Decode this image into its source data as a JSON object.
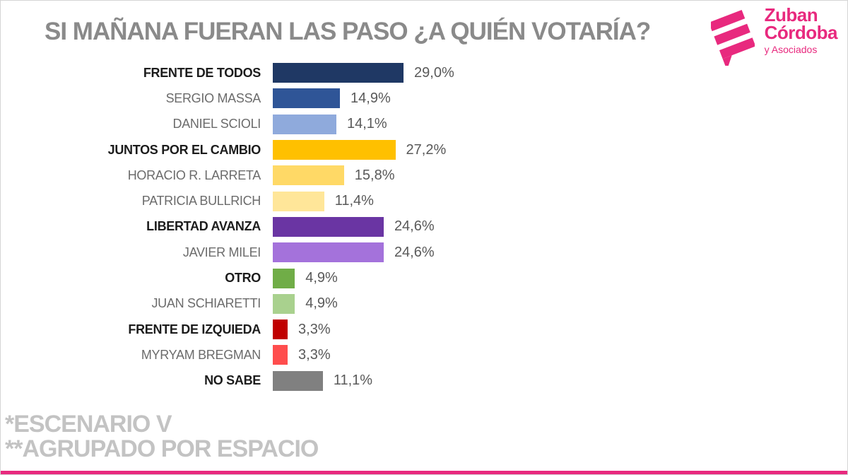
{
  "title": "SI MAÑANA FUERAN LAS PASO ¿A QUIÉN VOTARÍA?",
  "logo": {
    "name_line1": "Zuban",
    "name_line2": "Córdoba",
    "tagline": "y Asociados",
    "brand_color": "#E8297E"
  },
  "footnotes": {
    "line1": "*ESCENARIO V",
    "line2": "**AGRUPADO POR ESPACIO"
  },
  "chart_data": {
    "type": "bar",
    "orientation": "horizontal",
    "title": "SI MAÑANA FUERAN LAS PASO ¿A QUIÉN VOTARÍA?",
    "xlim": [
      0,
      31
    ],
    "grid": false,
    "value_suffix": "%",
    "decimal_separator": ",",
    "value_label_position": "right-of-bar",
    "categories": [
      "FRENTE DE TODOS",
      "SERGIO MASSA",
      "DANIEL SCIOLI",
      "JUNTOS POR EL CAMBIO",
      "HORACIO R. LARRETA",
      "PATRICIA BULLRICH",
      "LIBERTAD AVANZA",
      "JAVIER MILEI",
      "OTRO",
      "JUAN SCHIARETTI",
      "FRENTE DE IZQUIEDA",
      "MYRYAM BREGMAN",
      "NO SABE"
    ],
    "values": [
      29.0,
      14.9,
      14.1,
      27.2,
      15.8,
      11.4,
      24.6,
      24.6,
      4.9,
      4.9,
      3.3,
      3.3,
      11.1
    ],
    "value_labels": [
      "29,0%",
      "14,9%",
      "14,1%",
      "27,2%",
      "15,8%",
      "11,4%",
      "24,6%",
      "24,6%",
      "4,9%",
      "4,9%",
      "3,3%",
      "3,3%",
      "11,1%"
    ],
    "bar_colors": [
      "#1F3864",
      "#2F5597",
      "#8FAADC",
      "#FFC000",
      "#FFD966",
      "#FFE699",
      "#6A35A3",
      "#A472DB",
      "#70AD47",
      "#A9D18E",
      "#C00000",
      "#FF4D4D",
      "#808080"
    ],
    "emphasized": [
      true,
      false,
      false,
      true,
      false,
      false,
      true,
      false,
      true,
      false,
      true,
      false,
      true
    ]
  },
  "footer_bar_color": "#E8297E"
}
